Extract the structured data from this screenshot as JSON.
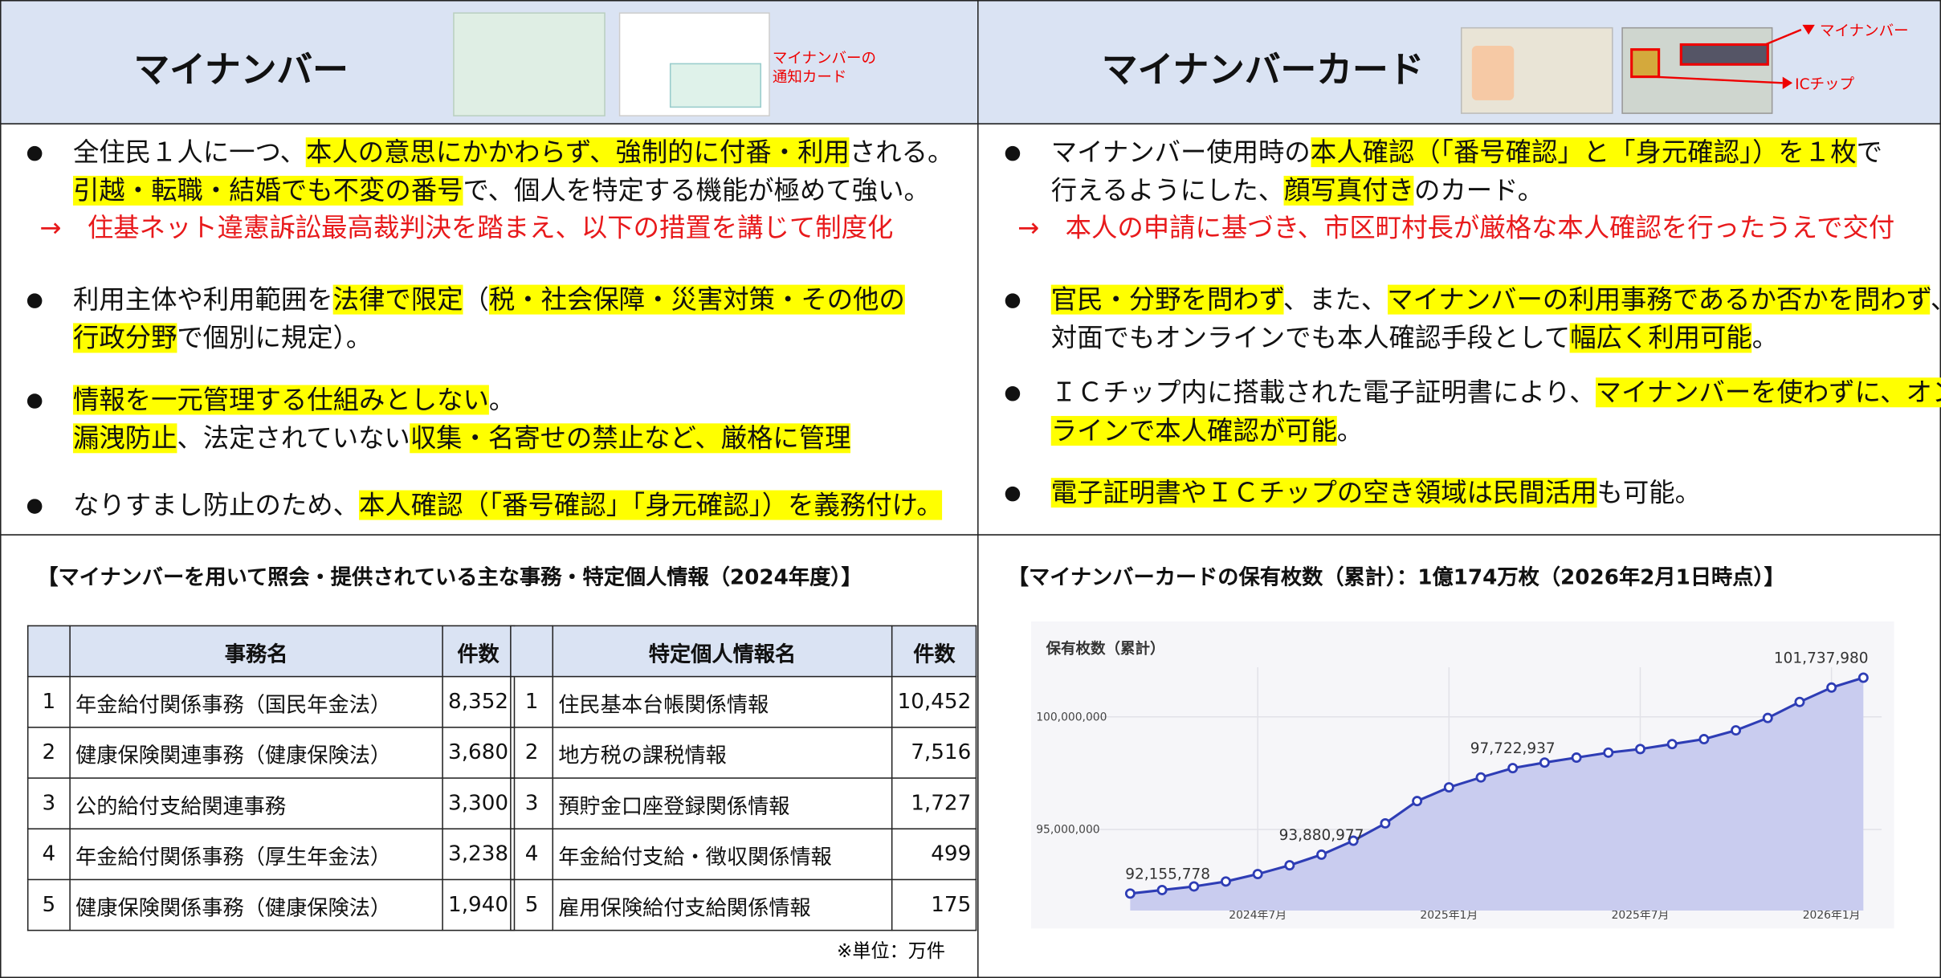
{
  "left": {
    "header": {
      "title": "マイナンバー",
      "caption": [
        "マイナンバーの",
        "通知カード"
      ]
    },
    "bullets": [
      {
        "lines": [
          [
            {
              "text": "全住民１人に一つ、"
            },
            {
              "text": "本人の意思にかかわらず、強制的に付番・利用",
              "highlight": true
            },
            {
              "text": "される。"
            }
          ],
          [
            {
              "text": "引越・転職・結婚でも不変の番号",
              "highlight": true
            },
            {
              "text": "で、個人を特定する機能が極めて強い。"
            }
          ]
        ],
        "note": "→　住基ネット違憲訴訟最高裁判決を踏まえ、以下の措置を講じて制度化"
      },
      {
        "lines": [
          [
            {
              "text": "利用主体や利用範囲を"
            },
            {
              "text": "法律で限定",
              "highlight": true
            },
            {
              "text": "（"
            },
            {
              "text": "税・社会保障・災害対策・その他の",
              "highlight": true
            }
          ],
          [
            {
              "text": "行政分野",
              "highlight": true
            },
            {
              "text": "で個別に規定）。"
            }
          ]
        ]
      },
      {
        "lines": [
          [
            {
              "text": "情報を一元管理する仕組みとしない",
              "highlight": true
            },
            {
              "text": "。"
            }
          ],
          [
            {
              "text": "漏洩防止",
              "highlight": true
            },
            {
              "text": "、法定されていない"
            },
            {
              "text": "収集・名寄せの禁止など、厳格に管理",
              "highlight": true
            }
          ]
        ]
      },
      {
        "lines": [
          [
            {
              "text": "なりすまし防止のため、"
            },
            {
              "text": "本人確認（「番号確認」「身元確認」）を義務付け。",
              "highlight": true
            }
          ]
        ]
      }
    ]
  },
  "right": {
    "header": {
      "title": "マイナンバーカード",
      "labels": [
        "マイナンバー",
        "ICチップ"
      ]
    },
    "bullets": [
      {
        "lines": [
          [
            {
              "text": "マイナンバー使用時の"
            },
            {
              "text": "本人確認（「番号確認」と「身元確認」）を１枚",
              "highlight": true
            },
            {
              "text": "で"
            }
          ],
          [
            {
              "text": "行えるようにした、"
            },
            {
              "text": "顔写真付き",
              "highlight": true
            },
            {
              "text": "のカード。"
            }
          ]
        ],
        "note": "→　本人の申請に基づき、市区町村長が厳格な本人確認を行ったうえで交付"
      },
      {
        "lines": [
          [
            {
              "text": "官民・分野を問わず",
              "highlight": true
            },
            {
              "text": "、また、"
            },
            {
              "text": "マイナンバーの利用事務であるか否かを問わず",
              "highlight": true
            },
            {
              "text": "、"
            }
          ],
          [
            {
              "text": "対面でもオンラインでも本人確認手段として"
            },
            {
              "text": "幅広く利用可能",
              "highlight": true
            },
            {
              "text": "。"
            }
          ]
        ]
      },
      {
        "lines": [
          [
            {
              "text": "ＩＣチップ内に搭載された電子証明書により、"
            },
            {
              "text": "マイナンバーを使わずに、オン",
              "highlight": true
            }
          ],
          [
            {
              "text": "ラインで本人確認が可能",
              "highlight": true
            },
            {
              "text": "。"
            }
          ]
        ]
      },
      {
        "lines": [
          [
            {
              "text": "電子証明書やＩＣチップの空き領域は民間活用",
              "highlight": true
            },
            {
              "text": "も可能。"
            }
          ]
        ]
      }
    ]
  },
  "tables_section": {
    "title": "【マイナンバーを用いて照会・提供されている主な事務・特定個人情報（2024年度）】",
    "tables": [
      {
        "columns": [
          "事務名",
          "件数"
        ],
        "rows": [
          [
            "1",
            "年金給付関係事務（国民年金法）",
            "8,352"
          ],
          [
            "2",
            "健康保険関連事務（健康保険法）",
            "3,680"
          ],
          [
            "3",
            "公的給付支給関連事務",
            "3,300"
          ],
          [
            "4",
            "年金給付関係事務（厚生年金法）",
            "3,238"
          ],
          [
            "5",
            "健康保険関係事務（健康保険法）",
            "1,940"
          ]
        ]
      },
      {
        "columns": [
          "特定個人情報名",
          "件数"
        ],
        "rows": [
          [
            "1",
            "住民基本台帳関係情報",
            "10,452"
          ],
          [
            "2",
            "地方税の課税情報",
            "7,516"
          ],
          [
            "3",
            "預貯金口座登録関係情報",
            "1,727"
          ],
          [
            "4",
            "年金給付支給・徴収関係情報",
            "499"
          ],
          [
            "5",
            "雇用保険給付支給関係情報",
            "175"
          ]
        ]
      }
    ],
    "note": "※単位：万件"
  },
  "card_section": {
    "title": "【マイナンバーカードの保有枚数（累計）：1億174万枚（2026年2月1日時点）】"
  },
  "chart_data": {
    "type": "line",
    "title": "保有枚数（累計）",
    "categories": [
      null,
      null,
      null,
      null,
      "2024年7月",
      null,
      null,
      null,
      null,
      null,
      "2025年1月",
      null,
      null,
      null,
      null,
      null,
      "2025年7月",
      null,
      null,
      null,
      null,
      null,
      "2026年1月",
      null
    ],
    "values": [
      92155778,
      92310000,
      92470000,
      92690000,
      93020000,
      93410000,
      93880977,
      94500000,
      95270000,
      96260000,
      96870000,
      97310000,
      97722937,
      97970000,
      98190000,
      98410000,
      98570000,
      98790000,
      99010000,
      99400000,
      99950000,
      100660000,
      101300000,
      101737980
    ],
    "value_labels": [
      "92,155,778",
      null,
      null,
      null,
      null,
      null,
      "93,880,977",
      null,
      null,
      null,
      null,
      null,
      "97,722,937",
      null,
      null,
      null,
      null,
      null,
      null,
      null,
      null,
      null,
      null,
      "101,737,980"
    ],
    "color": "#2e3db5",
    "area": true,
    "area_color": "#c9ccef",
    "ylim": [
      91400000,
      102200000
    ],
    "yticks": [
      {
        "value": 95000000,
        "label": "95,000,000"
      },
      {
        "value": 100000000,
        "label": "100,000,000"
      }
    ],
    "grid": true
  }
}
